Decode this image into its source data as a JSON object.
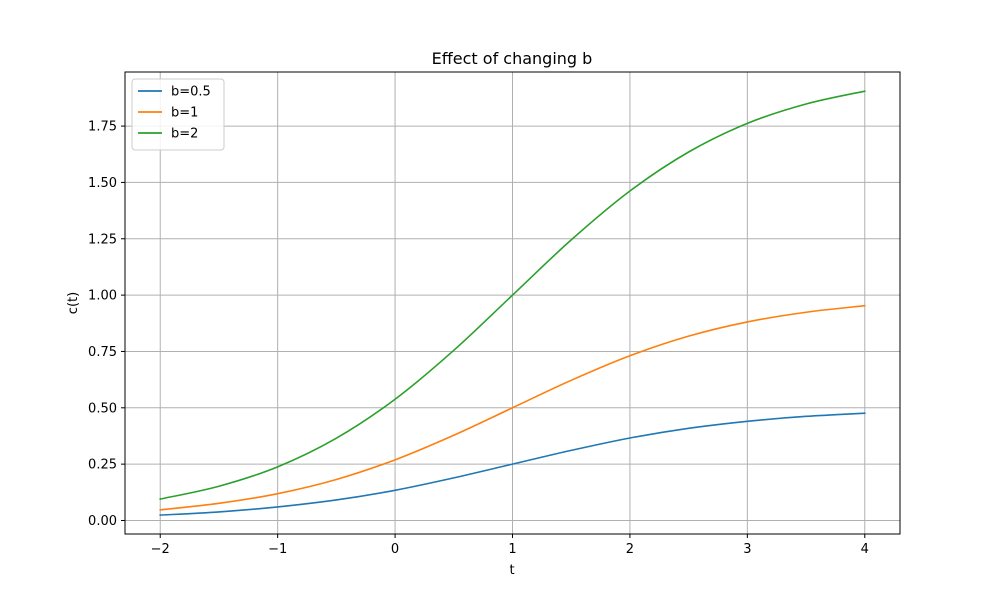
{
  "chart_data": {
    "type": "line",
    "title": "Effect of changing b",
    "xlabel": "t",
    "ylabel": "c(t)",
    "xlim": [
      -2.3,
      4.3
    ],
    "ylim": [
      -0.06,
      1.99
    ],
    "xticks": [
      -2,
      -1,
      0,
      1,
      2,
      3,
      4
    ],
    "xtick_labels": [
      "−2",
      "−1",
      "0",
      "1",
      "2",
      "3",
      "4"
    ],
    "yticks": [
      0.0,
      0.25,
      0.5,
      0.75,
      1.0,
      1.25,
      1.5,
      1.75
    ],
    "ytick_labels": [
      "0.00",
      "0.25",
      "0.50",
      "0.75",
      "1.00",
      "1.25",
      "1.50",
      "1.75"
    ],
    "grid": true,
    "legend_position": "top-left",
    "x": [
      -2,
      -1.5,
      -1,
      -0.5,
      0,
      0.5,
      1,
      1.5,
      2,
      2.5,
      3,
      3.5,
      4
    ],
    "series": [
      {
        "name": "b=0.5",
        "color": "#1f77b4",
        "values": [
          0.024,
          0.038,
          0.06,
          0.091,
          0.134,
          0.189,
          0.25,
          0.311,
          0.366,
          0.409,
          0.44,
          0.462,
          0.476
        ]
      },
      {
        "name": "b=1",
        "color": "#ff7f0e",
        "values": [
          0.047,
          0.076,
          0.119,
          0.182,
          0.269,
          0.378,
          0.5,
          0.622,
          0.731,
          0.818,
          0.881,
          0.924,
          0.953
        ]
      },
      {
        "name": "b=2",
        "color": "#2ca02c",
        "values": [
          0.095,
          0.152,
          0.238,
          0.365,
          0.538,
          0.755,
          1.0,
          1.245,
          1.462,
          1.635,
          1.762,
          1.848,
          1.905
        ]
      }
    ]
  }
}
